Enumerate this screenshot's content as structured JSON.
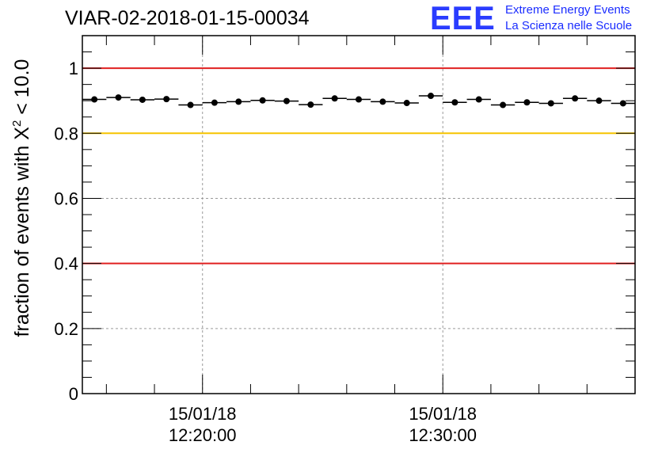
{
  "logo": {
    "letters": "EEE",
    "line1": "Extreme Energy Events",
    "line2": "La Scienza nelle Scuole"
  },
  "chart_data": {
    "type": "scatter",
    "title": "VIAR-02-2018-01-15-00034",
    "ylabel": "fraction of events with χ² < 10.0",
    "ylabel_parts": {
      "pre": "fraction of events with ",
      "sym": "X",
      "sup": "2",
      "post": " < 10.0"
    },
    "xlabel": "",
    "x_unit": "minutes",
    "xlim": [
      "12:15:00",
      "12:38:00"
    ],
    "ylim": [
      0,
      1.1
    ],
    "y_ticks": [
      0,
      0.2,
      0.4,
      0.6,
      0.8,
      1
    ],
    "y_tick_labels": [
      "0",
      "0.2",
      "0.4",
      "0.6",
      "0.8",
      "1"
    ],
    "x_ticks": [
      "12:20:00",
      "12:30:00"
    ],
    "x_tick_labels": [
      {
        "date": "15/01/18",
        "time": "12:20:00"
      },
      {
        "date": "15/01/18",
        "time": "12:30:00"
      }
    ],
    "grid": true,
    "reference_lines": [
      {
        "y": 1.0,
        "color": "#e02020"
      },
      {
        "y": 0.8,
        "color": "#f5c400"
      },
      {
        "y": 0.4,
        "color": "#e02020"
      }
    ],
    "series": [
      {
        "marker": "circle",
        "color": "#000000",
        "bin_width_minutes": 1,
        "x": [
          "12:15:30",
          "12:16:30",
          "12:17:30",
          "12:18:30",
          "12:19:30",
          "12:20:30",
          "12:21:30",
          "12:22:30",
          "12:23:30",
          "12:24:30",
          "12:25:30",
          "12:26:30",
          "12:27:30",
          "12:28:30",
          "12:29:30",
          "12:30:30",
          "12:31:30",
          "12:32:30",
          "12:33:30",
          "12:34:30",
          "12:35:30",
          "12:36:30",
          "12:37:30"
        ],
        "y": [
          0.904,
          0.91,
          0.903,
          0.905,
          0.887,
          0.894,
          0.897,
          0.901,
          0.899,
          0.888,
          0.907,
          0.904,
          0.897,
          0.893,
          0.915,
          0.895,
          0.904,
          0.887,
          0.895,
          0.892,
          0.907,
          0.9,
          0.892
        ]
      }
    ]
  }
}
